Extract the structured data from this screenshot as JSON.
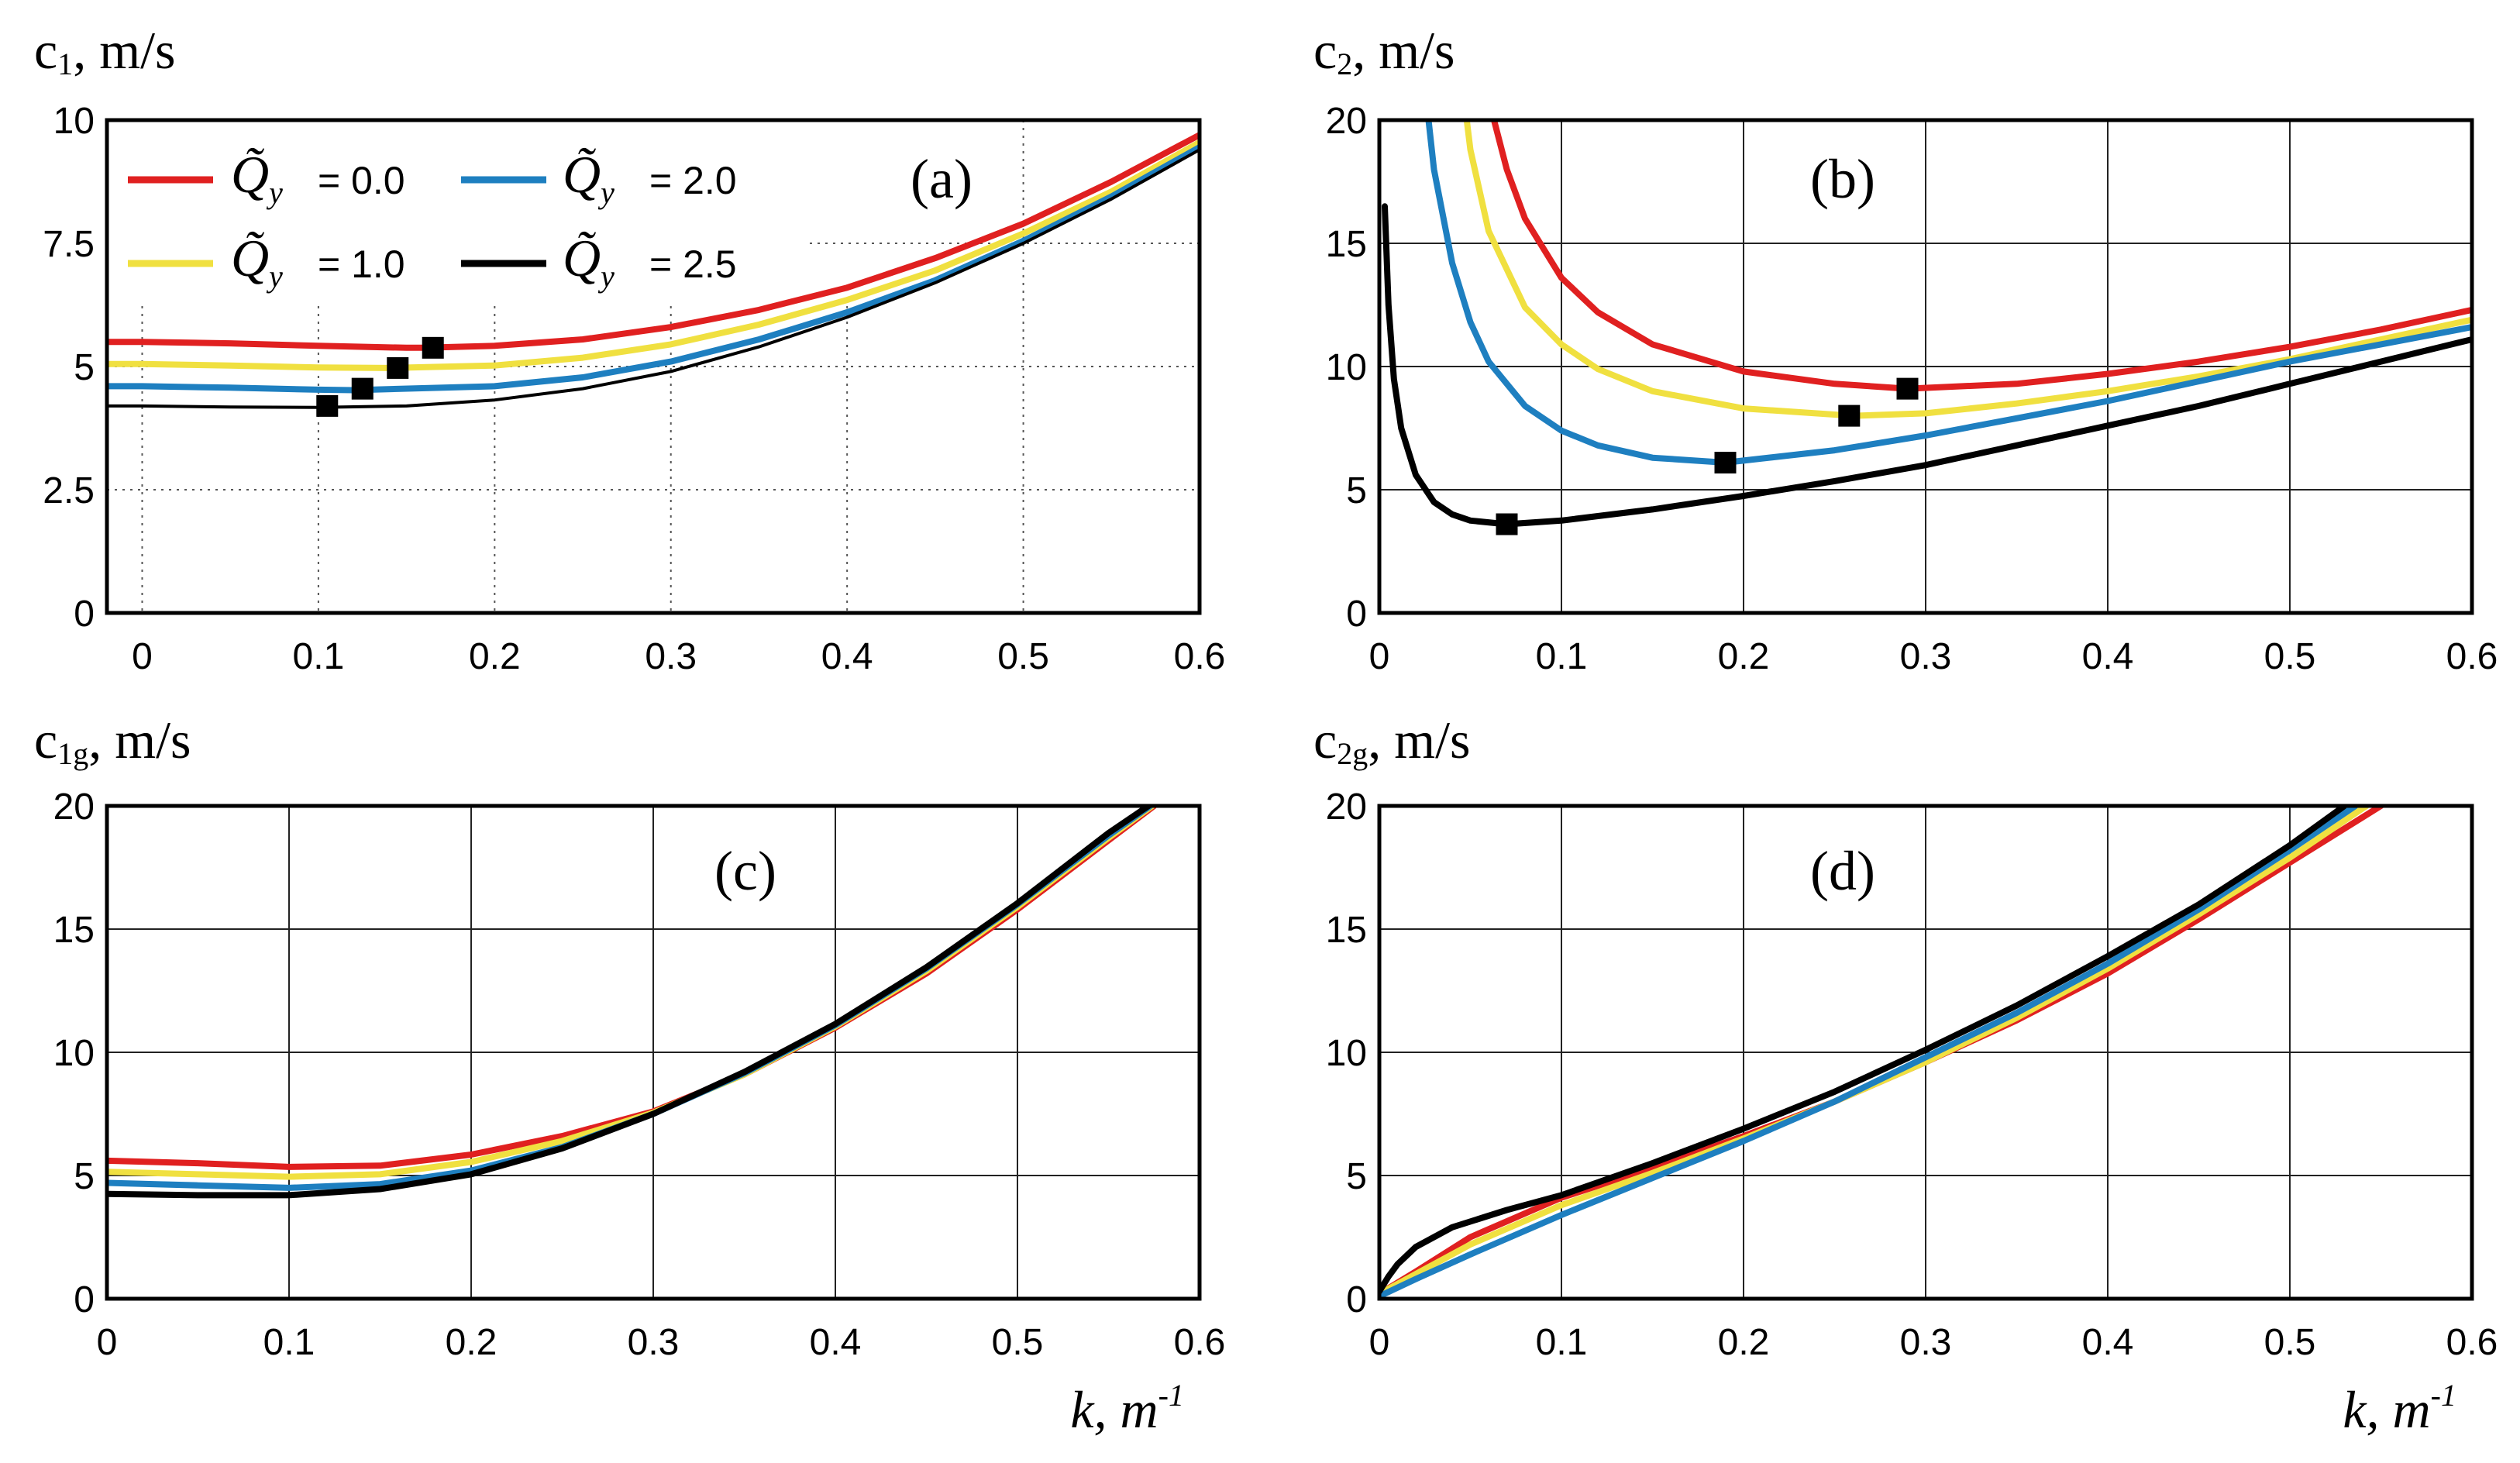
{
  "legend": {
    "symbol": "Q̃",
    "subscript": "y",
    "entries": [
      {
        "series": 0,
        "label": "= 0.0"
      },
      {
        "series": 1,
        "label": "= 1.0"
      },
      {
        "series": 2,
        "label": "= 2.0"
      },
      {
        "series": 3,
        "label": "= 2.5"
      }
    ]
  },
  "colors": {
    "q0": "#e02020",
    "q1": "#f0e040",
    "q2": "#1e7fc0",
    "q3": "#000000"
  },
  "x_axis_label": {
    "main": "k, m",
    "sup": "-1"
  },
  "chart_data": [
    {
      "type": "line",
      "panel": "(a)",
      "ylabel": {
        "main": "c",
        "sub": "1",
        "rest": ", m/s"
      },
      "xlim": [
        -0.02,
        0.6
      ],
      "ylim": [
        0,
        10
      ],
      "xticks": [
        0,
        0.1,
        0.2,
        0.3,
        0.4,
        0.5,
        0.6
      ],
      "xtick_labels": [
        "0",
        "0.1",
        "0.2",
        "0.3",
        "0.4",
        "0.5",
        "0.6"
      ],
      "yticks": [
        0,
        2.5,
        5,
        7.5,
        10
      ],
      "ytick_labels": [
        "0",
        "2.5",
        "5",
        "7.5",
        "10"
      ],
      "grid": "dotted",
      "series": [
        {
          "name": "Q̃y = 0.0",
          "color": "#e02020",
          "width": 8,
          "x": [
            -0.02,
            0,
            0.05,
            0.1,
            0.15,
            0.16,
            0.2,
            0.25,
            0.3,
            0.35,
            0.4,
            0.45,
            0.5,
            0.55,
            0.6
          ],
          "y": [
            5.5,
            5.5,
            5.47,
            5.42,
            5.38,
            5.38,
            5.42,
            5.55,
            5.8,
            6.15,
            6.6,
            7.2,
            7.9,
            8.75,
            9.7
          ]
        },
        {
          "name": "Q̃y = 1.0",
          "color": "#f0e040",
          "width": 8,
          "x": [
            -0.02,
            0,
            0.05,
            0.1,
            0.14,
            0.2,
            0.25,
            0.3,
            0.35,
            0.4,
            0.45,
            0.5,
            0.55,
            0.6
          ],
          "y": [
            5.05,
            5.05,
            5.02,
            4.98,
            4.97,
            5.02,
            5.18,
            5.45,
            5.85,
            6.35,
            6.95,
            7.7,
            8.55,
            9.55
          ]
        },
        {
          "name": "Q̃y = 2.0",
          "color": "#1e7fc0",
          "width": 8,
          "x": [
            -0.02,
            0,
            0.05,
            0.1,
            0.12,
            0.2,
            0.25,
            0.3,
            0.35,
            0.4,
            0.45,
            0.5,
            0.55,
            0.6
          ],
          "y": [
            4.6,
            4.6,
            4.57,
            4.53,
            4.52,
            4.6,
            4.78,
            5.1,
            5.55,
            6.1,
            6.75,
            7.55,
            8.45,
            9.45
          ]
        },
        {
          "name": "Q̃y = 2.5",
          "color": "#000000",
          "width": 4,
          "x": [
            -0.02,
            0,
            0.05,
            0.1,
            0.15,
            0.2,
            0.25,
            0.3,
            0.35,
            0.4,
            0.45,
            0.5,
            0.55,
            0.6
          ],
          "y": [
            4.2,
            4.2,
            4.18,
            4.17,
            4.2,
            4.32,
            4.55,
            4.9,
            5.4,
            6.0,
            6.7,
            7.5,
            8.4,
            9.4
          ]
        }
      ],
      "markers": [
        {
          "x": 0.105,
          "y": 4.2
        },
        {
          "x": 0.125,
          "y": 4.55
        },
        {
          "x": 0.145,
          "y": 4.97
        },
        {
          "x": 0.165,
          "y": 5.38
        }
      ]
    },
    {
      "type": "line",
      "panel": "(b)",
      "ylabel": {
        "main": "c",
        "sub": "2",
        "rest": ", m/s"
      },
      "xlim": [
        0,
        0.6
      ],
      "ylim": [
        0,
        20
      ],
      "xticks": [
        0,
        0.1,
        0.2,
        0.3,
        0.4,
        0.5,
        0.6
      ],
      "xtick_labels": [
        "0",
        "0.1",
        "0.2",
        "0.3",
        "0.4",
        "0.5",
        "0.6"
      ],
      "yticks": [
        0,
        5,
        10,
        15,
        20
      ],
      "ytick_labels": [
        "0",
        "5",
        "10",
        "15",
        "20"
      ],
      "grid": "solid",
      "series": [
        {
          "name": "Q̃y = 0.0",
          "color": "#e02020",
          "width": 8,
          "x": [
            0.063,
            0.07,
            0.08,
            0.1,
            0.12,
            0.15,
            0.2,
            0.25,
            0.29,
            0.35,
            0.4,
            0.45,
            0.5,
            0.55,
            0.6
          ],
          "y": [
            20,
            18.0,
            16.0,
            13.6,
            12.2,
            10.9,
            9.8,
            9.3,
            9.1,
            9.3,
            9.7,
            10.2,
            10.8,
            11.5,
            12.3
          ]
        },
        {
          "name": "Q̃y = 1.0",
          "color": "#f0e040",
          "width": 8,
          "x": [
            0.048,
            0.05,
            0.06,
            0.08,
            0.1,
            0.12,
            0.15,
            0.2,
            0.26,
            0.3,
            0.35,
            0.4,
            0.45,
            0.5,
            0.55,
            0.6
          ],
          "y": [
            20,
            18.8,
            15.5,
            12.4,
            10.9,
            9.9,
            9.0,
            8.3,
            8.0,
            8.1,
            8.5,
            9.0,
            9.6,
            10.3,
            11.1,
            11.9
          ]
        },
        {
          "name": "Q̃y = 2.0",
          "color": "#1e7fc0",
          "width": 8,
          "x": [
            0.027,
            0.03,
            0.04,
            0.05,
            0.06,
            0.08,
            0.1,
            0.12,
            0.15,
            0.19,
            0.25,
            0.3,
            0.35,
            0.4,
            0.45,
            0.5,
            0.55,
            0.6
          ],
          "y": [
            20,
            18.0,
            14.2,
            11.8,
            10.2,
            8.4,
            7.4,
            6.8,
            6.3,
            6.1,
            6.6,
            7.2,
            7.9,
            8.6,
            9.4,
            10.2,
            10.9,
            11.6
          ]
        },
        {
          "name": "Q̃y = 2.5",
          "color": "#000000",
          "width": 8,
          "x": [
            0.003,
            0.005,
            0.008,
            0.012,
            0.02,
            0.03,
            0.04,
            0.05,
            0.07,
            0.1,
            0.15,
            0.2,
            0.25,
            0.3,
            0.35,
            0.4,
            0.45,
            0.5,
            0.55,
            0.6
          ],
          "y": [
            16.5,
            12.5,
            9.5,
            7.5,
            5.6,
            4.5,
            4.0,
            3.75,
            3.6,
            3.75,
            4.2,
            4.75,
            5.35,
            6.0,
            6.8,
            7.6,
            8.4,
            9.3,
            10.2,
            11.1
          ]
        }
      ],
      "markers": [
        {
          "x": 0.07,
          "y": 3.6
        },
        {
          "x": 0.19,
          "y": 6.1
        },
        {
          "x": 0.258,
          "y": 8.0
        },
        {
          "x": 0.29,
          "y": 9.1
        }
      ]
    },
    {
      "type": "line",
      "panel": "(c)",
      "ylabel": {
        "main": "c",
        "sub": "1g",
        "rest": ", m/s"
      },
      "xlim": [
        0,
        0.6
      ],
      "ylim": [
        0,
        20
      ],
      "xticks": [
        0,
        0.1,
        0.2,
        0.3,
        0.4,
        0.5,
        0.6
      ],
      "xtick_labels": [
        "0",
        "0.1",
        "0.2",
        "0.3",
        "0.4",
        "0.5",
        "0.6"
      ],
      "yticks": [
        0,
        5,
        10,
        15,
        20
      ],
      "ytick_labels": [
        "0",
        "5",
        "10",
        "15",
        "20"
      ],
      "grid": "solid",
      "series": [
        {
          "name": "Q̃y = 0.0",
          "color": "#e02020",
          "width": 8,
          "x": [
            0,
            0.05,
            0.1,
            0.15,
            0.2,
            0.25,
            0.3,
            0.35,
            0.4,
            0.45,
            0.5,
            0.55,
            0.575
          ],
          "y": [
            5.6,
            5.5,
            5.35,
            5.4,
            5.85,
            6.6,
            7.6,
            9.1,
            11.0,
            13.2,
            15.8,
            18.6,
            20
          ]
        },
        {
          "name": "Q̃y = 1.0",
          "color": "#f0e040",
          "width": 8,
          "x": [
            0,
            0.05,
            0.1,
            0.15,
            0.2,
            0.25,
            0.3,
            0.35,
            0.4,
            0.45,
            0.5,
            0.55,
            0.574
          ],
          "y": [
            5.15,
            5.05,
            4.95,
            5.05,
            5.55,
            6.4,
            7.55,
            9.1,
            11.05,
            13.3,
            15.9,
            18.7,
            20
          ]
        },
        {
          "name": "Q̃y = 2.0",
          "color": "#1e7fc0",
          "width": 8,
          "x": [
            0,
            0.05,
            0.1,
            0.15,
            0.2,
            0.25,
            0.3,
            0.35,
            0.4,
            0.45,
            0.5,
            0.55,
            0.573
          ],
          "y": [
            4.7,
            4.6,
            4.5,
            4.65,
            5.2,
            6.15,
            7.5,
            9.15,
            11.1,
            13.4,
            16.0,
            18.8,
            20
          ]
        },
        {
          "name": "Q̃y = 2.5",
          "color": "#000000",
          "width": 8,
          "x": [
            0,
            0.05,
            0.1,
            0.15,
            0.2,
            0.25,
            0.3,
            0.35,
            0.4,
            0.45,
            0.5,
            0.55,
            0.572
          ],
          "y": [
            4.25,
            4.2,
            4.2,
            4.45,
            5.05,
            6.1,
            7.5,
            9.2,
            11.15,
            13.45,
            16.05,
            18.9,
            20
          ]
        }
      ],
      "markers": []
    },
    {
      "type": "line",
      "panel": "(d)",
      "ylabel": {
        "main": "c",
        "sub": "2g",
        "rest": ", m/s"
      },
      "xlim": [
        0,
        0.6
      ],
      "ylim": [
        0,
        20
      ],
      "xticks": [
        0,
        0.1,
        0.2,
        0.3,
        0.4,
        0.5,
        0.6
      ],
      "xtick_labels": [
        "0",
        "0.1",
        "0.2",
        "0.3",
        "0.4",
        "0.5",
        "0.6"
      ],
      "yticks": [
        0,
        5,
        10,
        15,
        20
      ],
      "ytick_labels": [
        "0",
        "5",
        "10",
        "15",
        "20"
      ],
      "grid": "solid",
      "series": [
        {
          "name": "Q̃y = 0.0",
          "color": "#e02020",
          "width": 8,
          "x": [
            0,
            0.02,
            0.05,
            0.1,
            0.15,
            0.2,
            0.25,
            0.3,
            0.35,
            0.4,
            0.45,
            0.5,
            0.55
          ],
          "y": [
            0.2,
            1.1,
            2.5,
            4.1,
            5.3,
            6.6,
            8.0,
            9.6,
            11.3,
            13.2,
            15.4,
            17.7,
            20
          ]
        },
        {
          "name": "Q̃y = 1.0",
          "color": "#f0e040",
          "width": 8,
          "x": [
            0,
            0.02,
            0.05,
            0.1,
            0.15,
            0.2,
            0.25,
            0.3,
            0.35,
            0.4,
            0.45,
            0.5,
            0.542
          ],
          "y": [
            0.2,
            1.0,
            2.2,
            3.8,
            5.1,
            6.5,
            8.0,
            9.6,
            11.4,
            13.4,
            15.6,
            17.9,
            20
          ]
        },
        {
          "name": "Q̃y = 2.0",
          "color": "#1e7fc0",
          "width": 8,
          "x": [
            0,
            0.02,
            0.05,
            0.1,
            0.15,
            0.2,
            0.25,
            0.3,
            0.35,
            0.4,
            0.45,
            0.5,
            0.536
          ],
          "y": [
            0.1,
            0.8,
            1.8,
            3.4,
            4.9,
            6.4,
            8.0,
            9.8,
            11.6,
            13.6,
            15.8,
            18.2,
            20
          ]
        },
        {
          "name": "Q̃y = 2.5",
          "color": "#000000",
          "width": 8,
          "x": [
            0,
            0.005,
            0.01,
            0.02,
            0.04,
            0.07,
            0.1,
            0.15,
            0.2,
            0.25,
            0.3,
            0.35,
            0.4,
            0.45,
            0.5,
            0.53
          ],
          "y": [
            0.3,
            0.9,
            1.4,
            2.1,
            2.9,
            3.6,
            4.2,
            5.5,
            6.9,
            8.4,
            10.1,
            11.9,
            13.9,
            16.0,
            18.4,
            20
          ]
        }
      ],
      "markers": []
    }
  ]
}
